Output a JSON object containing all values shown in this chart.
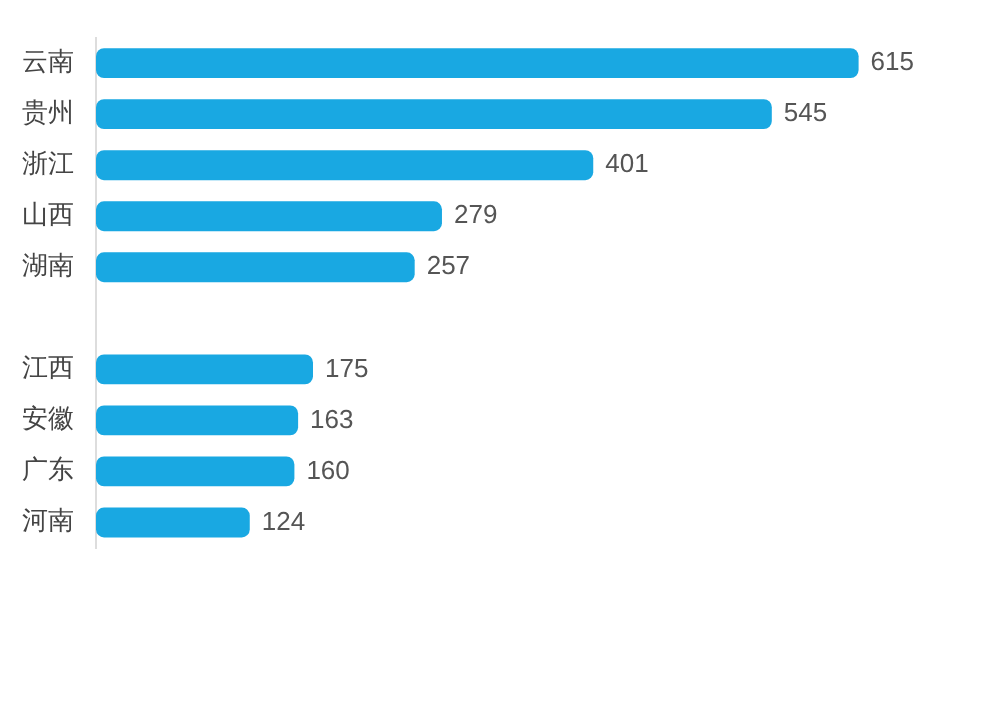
{
  "chart_data": {
    "type": "bar",
    "orientation": "horizontal",
    "categories": [
      "云南",
      "贵州",
      "浙江",
      "山西",
      "湖南",
      null,
      "江西",
      "安徽",
      "广东",
      "河南"
    ],
    "values": [
      615,
      545,
      401,
      279,
      257,
      null,
      175,
      163,
      160,
      124
    ],
    "color": "#19a8e2",
    "data_labels": true
  }
}
